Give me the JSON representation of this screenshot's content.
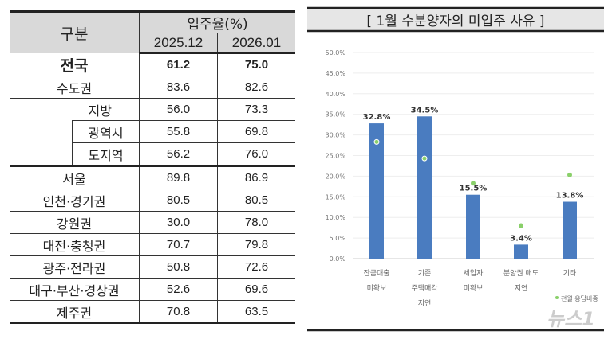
{
  "table": {
    "header": {
      "category": "구분",
      "group": "입주율(%)",
      "col1": "2025.12",
      "col2": "2026.01"
    },
    "rows": [
      {
        "label": "전국",
        "v1": "61.2",
        "v2": "75.0"
      },
      {
        "label": "수도권",
        "v1": "83.6",
        "v2": "82.6"
      },
      {
        "label": "지방",
        "v1": "56.0",
        "v2": "73.3"
      },
      {
        "label": "광역시",
        "v1": "55.8",
        "v2": "69.8"
      },
      {
        "label": "도지역",
        "v1": "56.2",
        "v2": "76.0"
      },
      {
        "label": "서울",
        "v1": "89.8",
        "v2": "86.9"
      },
      {
        "label": "인천·경기권",
        "v1": "80.5",
        "v2": "80.5"
      },
      {
        "label": "강원권",
        "v1": "30.0",
        "v2": "78.0"
      },
      {
        "label": "대전·충청권",
        "v1": "70.7",
        "v2": "79.8"
      },
      {
        "label": "광주·전라권",
        "v1": "50.8",
        "v2": "72.6"
      },
      {
        "label": "대구·부산·경상권",
        "v1": "52.6",
        "v2": "69.6"
      },
      {
        "label": "제주권",
        "v1": "70.8",
        "v2": "63.5"
      }
    ]
  },
  "chart_data": {
    "type": "bar",
    "title": "[ 1월 수분양자의 미입주 사유 ]",
    "categories": [
      [
        "잔금대출",
        "미확보"
      ],
      [
        "기존",
        "주택매각",
        "지연"
      ],
      [
        "세입자",
        "미확보"
      ],
      [
        "분양권 매도",
        "지연"
      ],
      [
        "기타"
      ]
    ],
    "series": [
      {
        "name": "",
        "type": "bar",
        "values": [
          32.8,
          34.5,
          15.5,
          3.4,
          13.8
        ],
        "labels": [
          "32.8%",
          "34.5%",
          "15.5%",
          "3.4%",
          "13.8%"
        ],
        "color": "#4a7cc0"
      },
      {
        "name": "전월 응답비중",
        "type": "scatter",
        "values": [
          28.3,
          24.3,
          18.3,
          8.0,
          20.3
        ],
        "color": "#8ad06a"
      }
    ],
    "ylim": [
      0,
      50
    ],
    "yticks": [
      "0.0%",
      "5.0%",
      "10.0%",
      "15.0%",
      "20.0%",
      "25.0%",
      "30.0%",
      "35.0%",
      "40.0%",
      "45.0%",
      "50.0%"
    ],
    "grid": true,
    "legend": "bottom-right"
  },
  "watermark": "뉴스1"
}
